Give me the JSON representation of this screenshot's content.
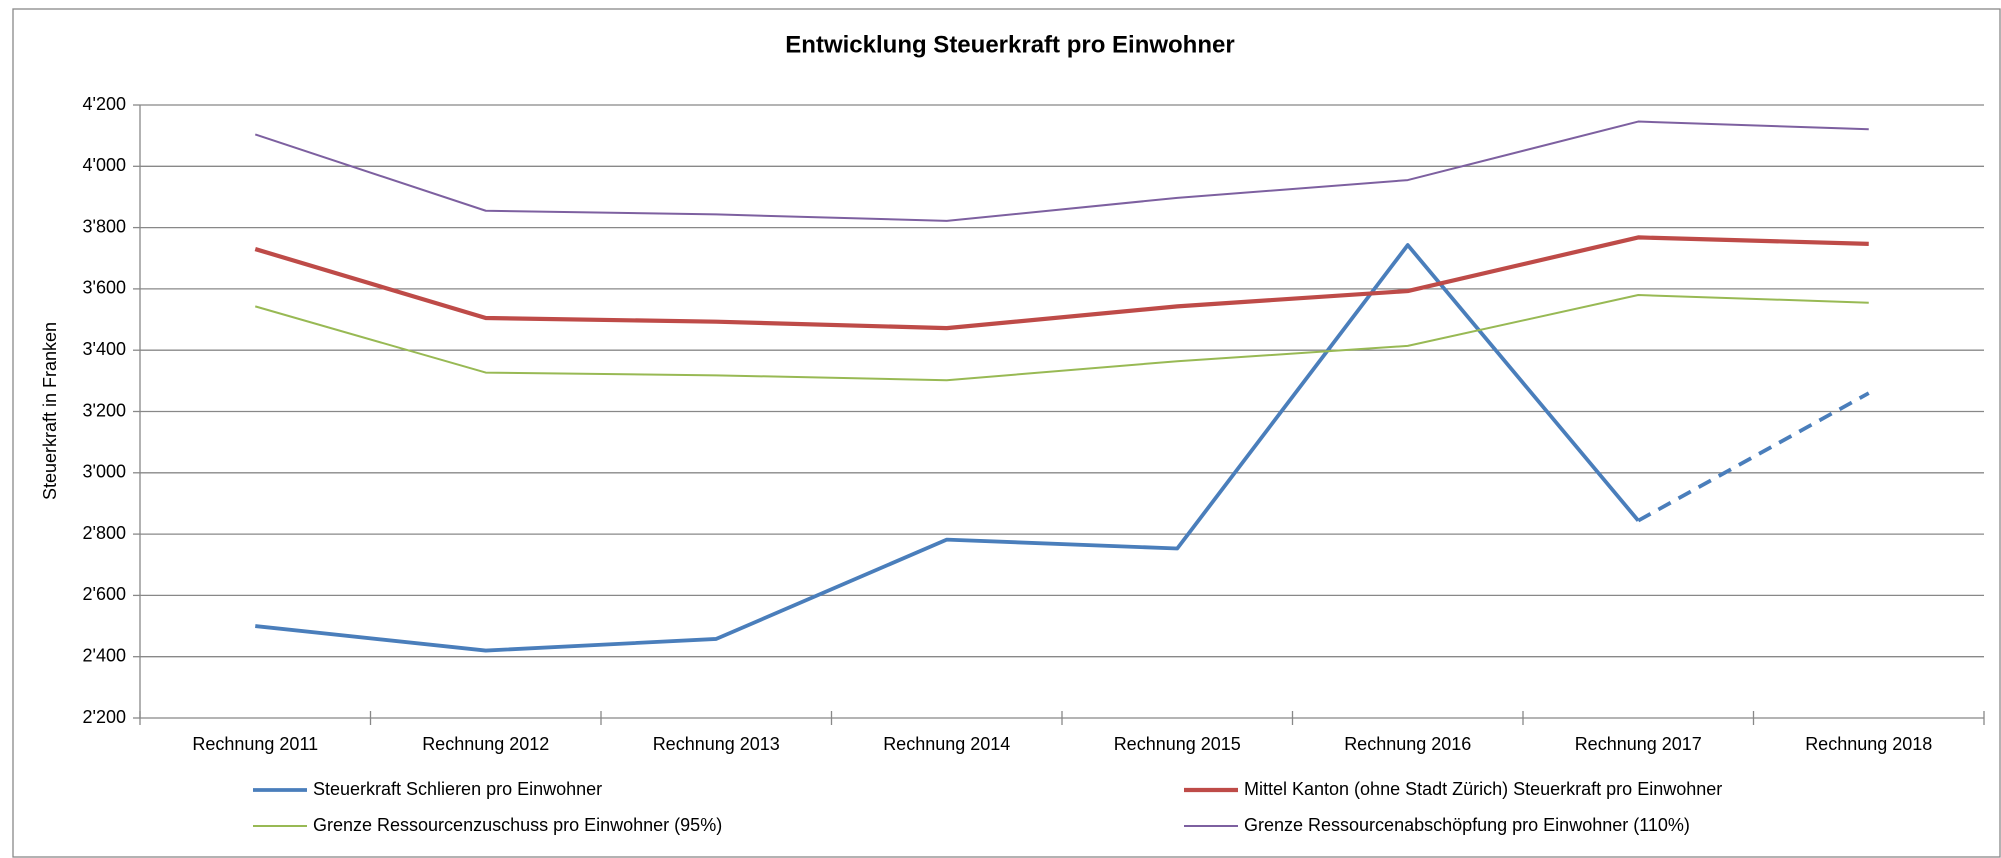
{
  "chart_data": {
    "type": "line",
    "title": "Entwicklung Steuerkraft  pro Einwohner",
    "y_label": "Steuerkraft in Franken",
    "categories": [
      "Rechnung 2011",
      "Rechnung 2012",
      "Rechnung 2013",
      "Rechnung 2014",
      "Rechnung 2015",
      "Rechnung 2016",
      "Rechnung 2017",
      "Rechnung 2018"
    ],
    "ylim": [
      2200,
      4200
    ],
    "yticks": [
      {
        "value": 2200,
        "label": "2'200"
      },
      {
        "value": 2400,
        "label": "2'400"
      },
      {
        "value": 2600,
        "label": "2'600"
      },
      {
        "value": 2800,
        "label": "2'800"
      },
      {
        "value": 3000,
        "label": "3'000"
      },
      {
        "value": 3200,
        "label": "3'200"
      },
      {
        "value": 3400,
        "label": "3'400"
      },
      {
        "value": 3600,
        "label": "3'600"
      },
      {
        "value": 3800,
        "label": "3'800"
      },
      {
        "value": 4000,
        "label": "4'000"
      },
      {
        "value": 4200,
        "label": "4'200"
      }
    ],
    "grid": true,
    "legend": "bottom",
    "series": [
      {
        "name": "Steuerkraft Schlieren pro Einwohner",
        "color": "#4a7ebb",
        "width": 3.8,
        "dashed_from": 6,
        "values": [
          2500,
          2420,
          2458,
          2782,
          2753,
          3743,
          2844,
          3260
        ]
      },
      {
        "name": "Mittel Kanton (ohne Stadt Zürich) Steuerkraft pro Einwohner",
        "color": "#be4b48",
        "width": 4.2,
        "values": [
          3730,
          3505,
          3493,
          3472,
          3543,
          3593,
          3768,
          3747
        ]
      },
      {
        "name": "Grenze Ressourcenzuschuss pro Einwohner (95%)",
        "color": "#98b954",
        "width": 2,
        "values": [
          3543,
          3327,
          3318,
          3302,
          3364,
          3414,
          3580,
          3555
        ]
      },
      {
        "name": "Grenze Ressourcenabschöpfung pro Einwohner (110%)",
        "color": "#7d60a0",
        "width": 2,
        "values": [
          4104,
          3855,
          3843,
          3822,
          3897,
          3955,
          4146,
          4121
        ]
      }
    ]
  }
}
